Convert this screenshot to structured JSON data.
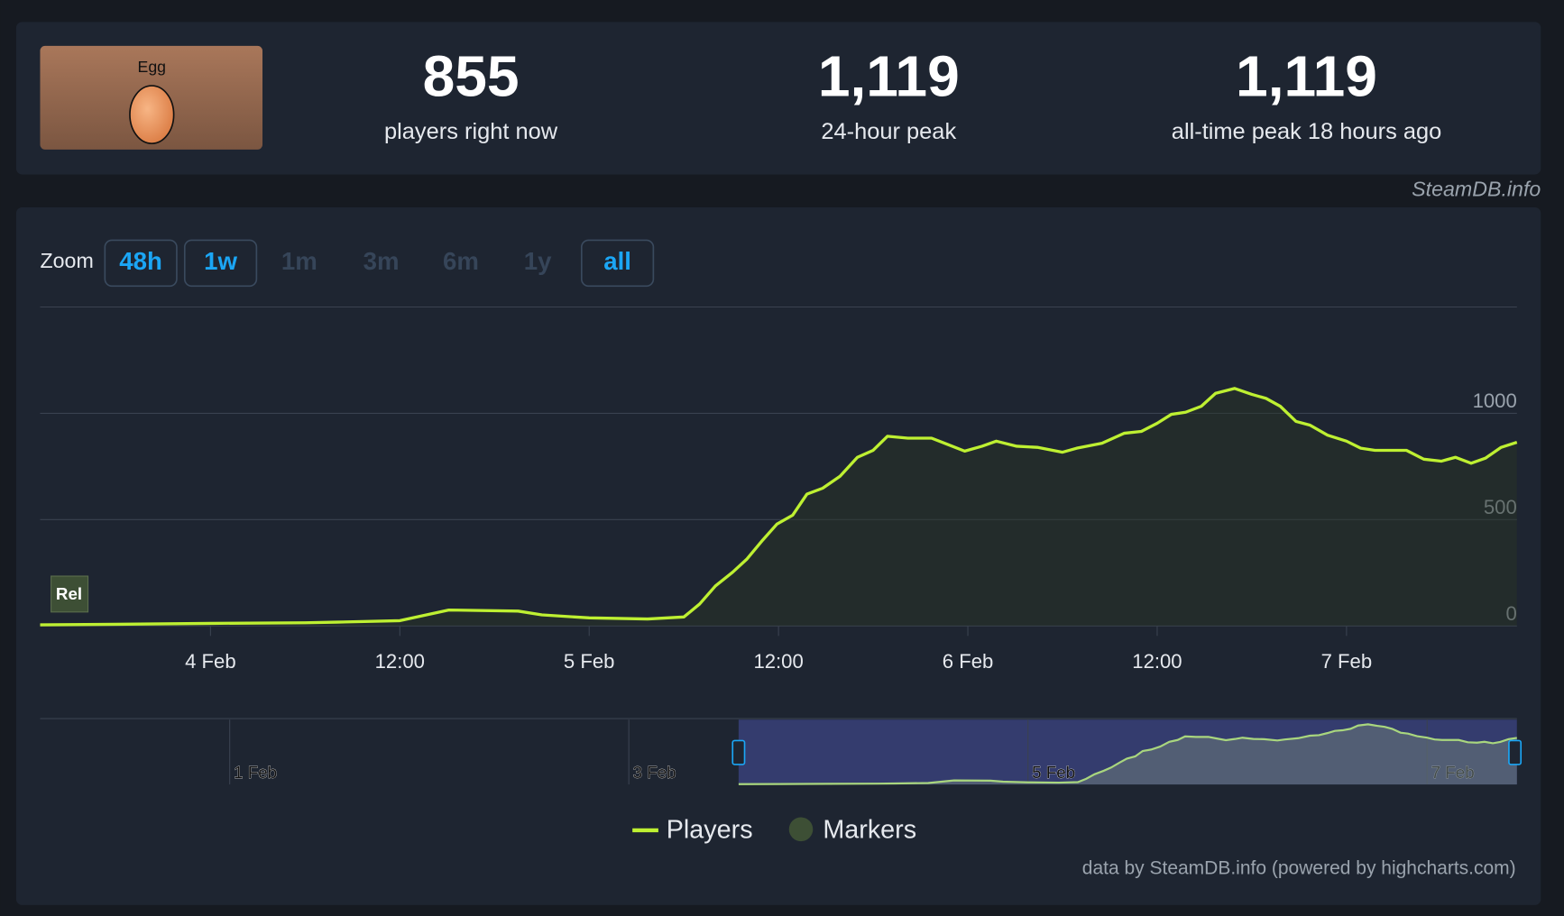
{
  "game": {
    "name": "Egg"
  },
  "stats": [
    {
      "value": "855",
      "label": "players right now"
    },
    {
      "value": "1,119",
      "label": "24-hour peak"
    },
    {
      "value": "1,119",
      "label": "all-time peak 18 hours ago"
    }
  ],
  "watermark": "SteamDB.info",
  "zoom": {
    "label": "Zoom",
    "buttons": [
      {
        "label": "48h",
        "enabled": true
      },
      {
        "label": "1w",
        "enabled": true
      },
      {
        "label": "1m",
        "enabled": false
      },
      {
        "label": "3m",
        "enabled": false
      },
      {
        "label": "6m",
        "enabled": false
      },
      {
        "label": "1y",
        "enabled": false
      },
      {
        "label": "all",
        "enabled": true
      }
    ]
  },
  "chart_data": {
    "type": "line",
    "x": [
      -10.8,
      -6,
      0,
      6,
      8,
      12,
      15.1,
      19.5,
      21,
      24,
      27.7,
      30,
      31,
      32,
      33.1,
      34,
      35,
      35.9,
      36.9,
      37.8,
      38.8,
      39.9,
      41,
      42,
      42.9,
      44.2,
      45.7,
      46.7,
      47.8,
      48.9,
      49.8,
      51.1,
      52.4,
      54,
      54.9,
      56.5,
      57.9,
      59,
      60,
      60.9,
      61.8,
      62.8,
      63.7,
      64.9,
      66,
      66.9,
      67.8,
      68.8,
      69.7,
      70.8,
      72,
      72.9,
      73.8,
      74.8,
      75.8,
      76.9,
      78,
      78.9,
      79.9,
      80.8,
      81.8,
      82.8
    ],
    "series": [
      {
        "name": "Players",
        "color": "#bef032",
        "values": [
          5,
          8,
          12,
          15,
          18,
          25,
          75,
          70,
          52,
          38,
          33,
          42,
          103,
          188,
          253,
          315,
          404,
          479,
          521,
          620,
          648,
          704,
          793,
          826,
          892,
          883,
          883,
          854,
          822,
          845,
          869,
          845,
          840,
          817,
          836,
          859,
          906,
          915,
          953,
          995,
          1005,
          1033,
          1094,
          1117,
          1089,
          1070,
          1033,
          962,
          944,
          897,
          869,
          836,
          826,
          826,
          826,
          784,
          775,
          793,
          765,
          789,
          840,
          864
        ]
      }
    ],
    "xlim": [
      -10.8,
      82.8
    ],
    "ylim": [
      0,
      1500
    ],
    "yticks": [
      0,
      500,
      1000
    ],
    "xticks": [
      {
        "value": 0,
        "label": "4 Feb"
      },
      {
        "value": 12,
        "label": "12:00"
      },
      {
        "value": 24,
        "label": "5 Feb"
      },
      {
        "value": 36,
        "label": "12:00"
      },
      {
        "value": 48,
        "label": "6 Feb"
      },
      {
        "value": 60,
        "label": "12:00"
      },
      {
        "value": 72,
        "label": "7 Feb"
      }
    ],
    "grid": true,
    "annotation": "Rel",
    "markers_legend": "Markers"
  },
  "navigator": {
    "xlim": [
      -94.8,
      82.8
    ],
    "xticks": [
      {
        "value": -72,
        "label": "1 Feb"
      },
      {
        "value": -24,
        "label": "3 Feb"
      },
      {
        "value": 24,
        "label": "5 Feb"
      },
      {
        "value": 72,
        "label": "7 Feb"
      }
    ]
  },
  "credits": "data by SteamDB.info (powered by highcharts.com)"
}
